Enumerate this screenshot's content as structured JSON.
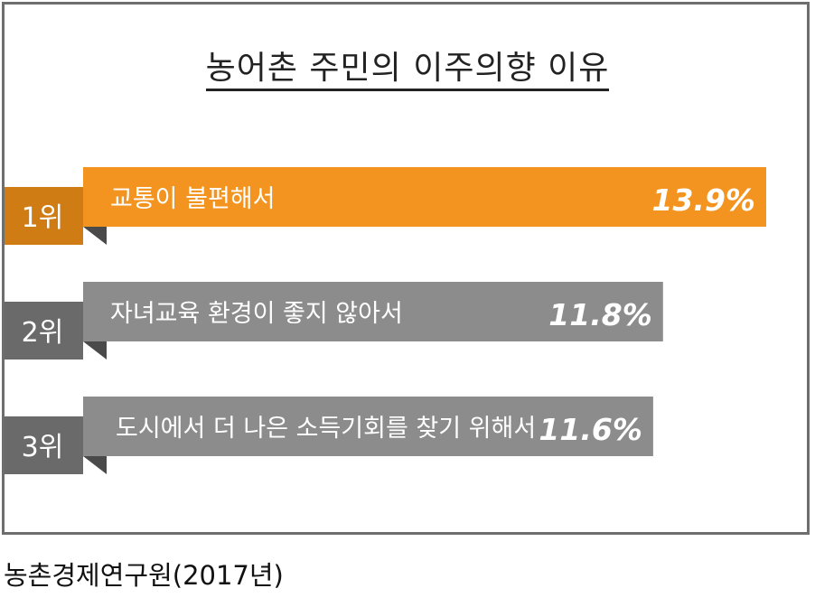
{
  "title": "농어촌 주민의 이주의향 이유",
  "source": "농촌경제연구원(2017년)",
  "colors": {
    "highlight": "#f39420",
    "highlight_dark": "#d07c15",
    "base": "#8c8c8c",
    "base_dark": "#6a6a6a",
    "fold": "#4a4a4a"
  },
  "chart_data": {
    "type": "bar",
    "orientation": "horizontal",
    "title": "농어촌 주민의 이주의향 이유",
    "ranks": [
      "1위",
      "2위",
      "3위"
    ],
    "categories": [
      "교통이 불편해서",
      "자녀교육 환경이 좋지 않아서",
      "도시에서 더 나은 소득기회를 찾기 위해서"
    ],
    "values": [
      13.9,
      11.8,
      11.6
    ],
    "value_labels": [
      "13.9%",
      "11.8%",
      "11.6%"
    ],
    "highlight_index": 0
  }
}
